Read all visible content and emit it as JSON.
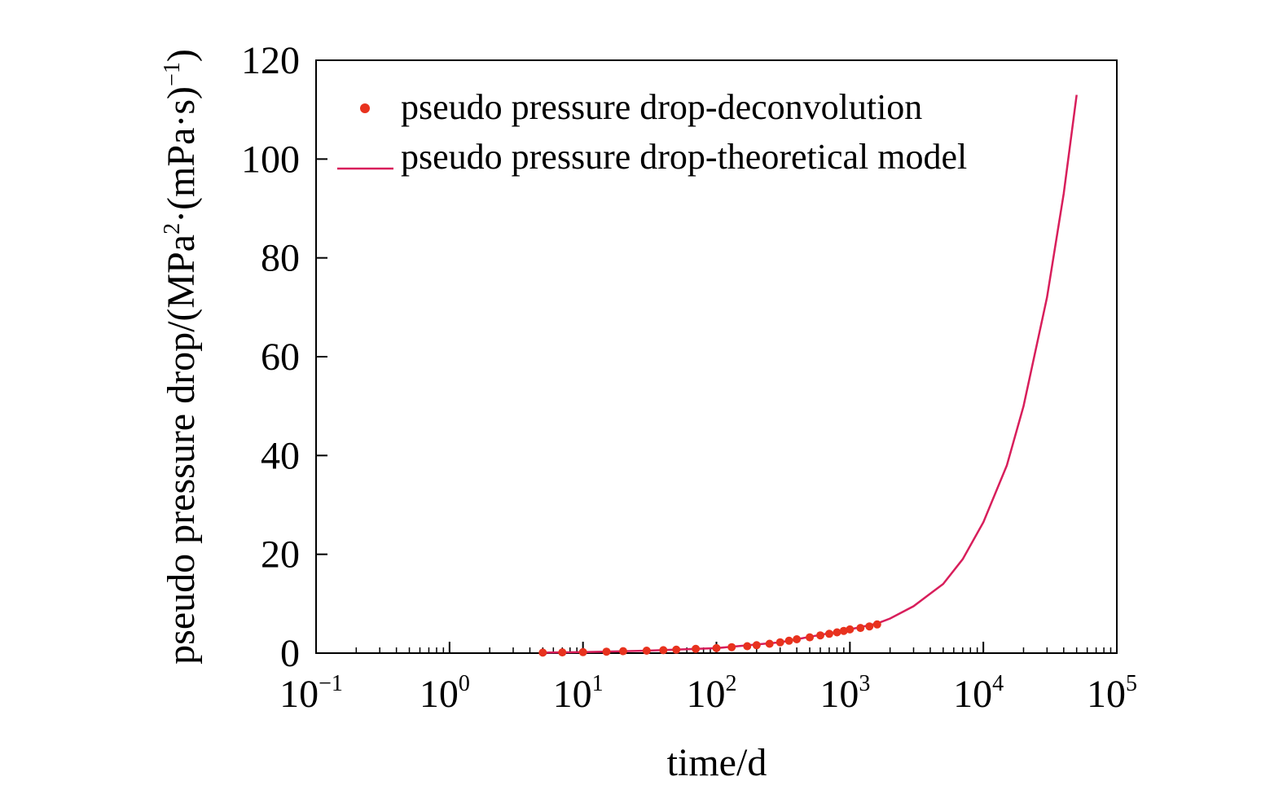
{
  "chart_data": {
    "type": "line",
    "xlabel": "time/d",
    "ylabel_main": "pseudo pressure drop/(MPa",
    "ylabel_sup1": "2",
    "ylabel_mid": "·(mPa·s)",
    "ylabel_sup2": "−1",
    "ylabel_end": ")",
    "x_scale": "log",
    "xlim": [
      0.1,
      100000
    ],
    "ylim": [
      0,
      120
    ],
    "x_ticks": [
      {
        "base": "10",
        "exp": "−1",
        "value": 0.1
      },
      {
        "base": "10",
        "exp": "0",
        "value": 1
      },
      {
        "base": "10",
        "exp": "1",
        "value": 10
      },
      {
        "base": "10",
        "exp": "2",
        "value": 100
      },
      {
        "base": "10",
        "exp": "3",
        "value": 1000
      },
      {
        "base": "10",
        "exp": "4",
        "value": 10000
      },
      {
        "base": "10",
        "exp": "5",
        "value": 100000
      }
    ],
    "y_ticks": [
      "0",
      "20",
      "40",
      "60",
      "80",
      "100",
      "120"
    ],
    "grid": false,
    "legend_position": "top-left",
    "series": [
      {
        "name": "pseudo pressure drop-deconvolution",
        "kind": "scatter",
        "color": "#e8321e",
        "x": [
          5,
          7,
          10,
          15,
          20,
          30,
          40,
          50,
          70,
          100,
          130,
          170,
          200,
          250,
          300,
          350,
          400,
          500,
          600,
          700,
          800,
          900,
          1000,
          1200,
          1400,
          1600
        ],
        "y": [
          0.1,
          0.15,
          0.2,
          0.3,
          0.4,
          0.5,
          0.6,
          0.7,
          0.85,
          1.0,
          1.2,
          1.4,
          1.6,
          1.9,
          2.2,
          2.5,
          2.8,
          3.2,
          3.6,
          3.9,
          4.2,
          4.5,
          4.8,
          5.1,
          5.4,
          5.8
        ]
      },
      {
        "name": "pseudo pressure drop-theoretical model",
        "kind": "line",
        "color": "#d81e5b",
        "x": [
          5,
          10,
          30,
          100,
          300,
          1000,
          1600,
          2000,
          3000,
          5000,
          7000,
          10000,
          15000,
          20000,
          30000,
          40000,
          50000
        ],
        "y": [
          0.1,
          0.2,
          0.5,
          1.0,
          2.2,
          4.8,
          6.0,
          7.0,
          9.5,
          14.0,
          19.0,
          26.5,
          38.0,
          50.0,
          72.0,
          93.0,
          113.0
        ]
      }
    ]
  }
}
